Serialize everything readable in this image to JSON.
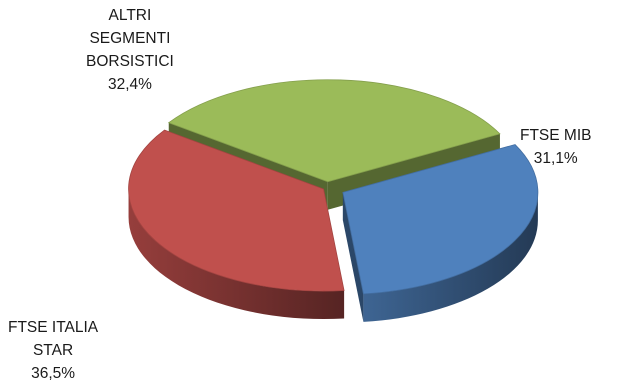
{
  "chart_data": {
    "type": "pie",
    "title": "",
    "style": "3d-exploded",
    "legend": "none",
    "series": [
      {
        "values": [
          {
            "label_lines": [
              "FTSE MIB"
            ],
            "value_label": "31,1%",
            "value": 31.1,
            "color": "#4f81bd"
          },
          {
            "label_lines": [
              "FTSE ITALIA",
              "STAR"
            ],
            "value_label": "36,5%",
            "value": 36.5,
            "color": "#c0504d"
          },
          {
            "label_lines": [
              "ALTRI",
              "SEGMENTI",
              "BORSISTICI"
            ],
            "value_label": "32,4%",
            "value": 32.4,
            "color": "#9bbb59"
          }
        ]
      }
    ]
  }
}
